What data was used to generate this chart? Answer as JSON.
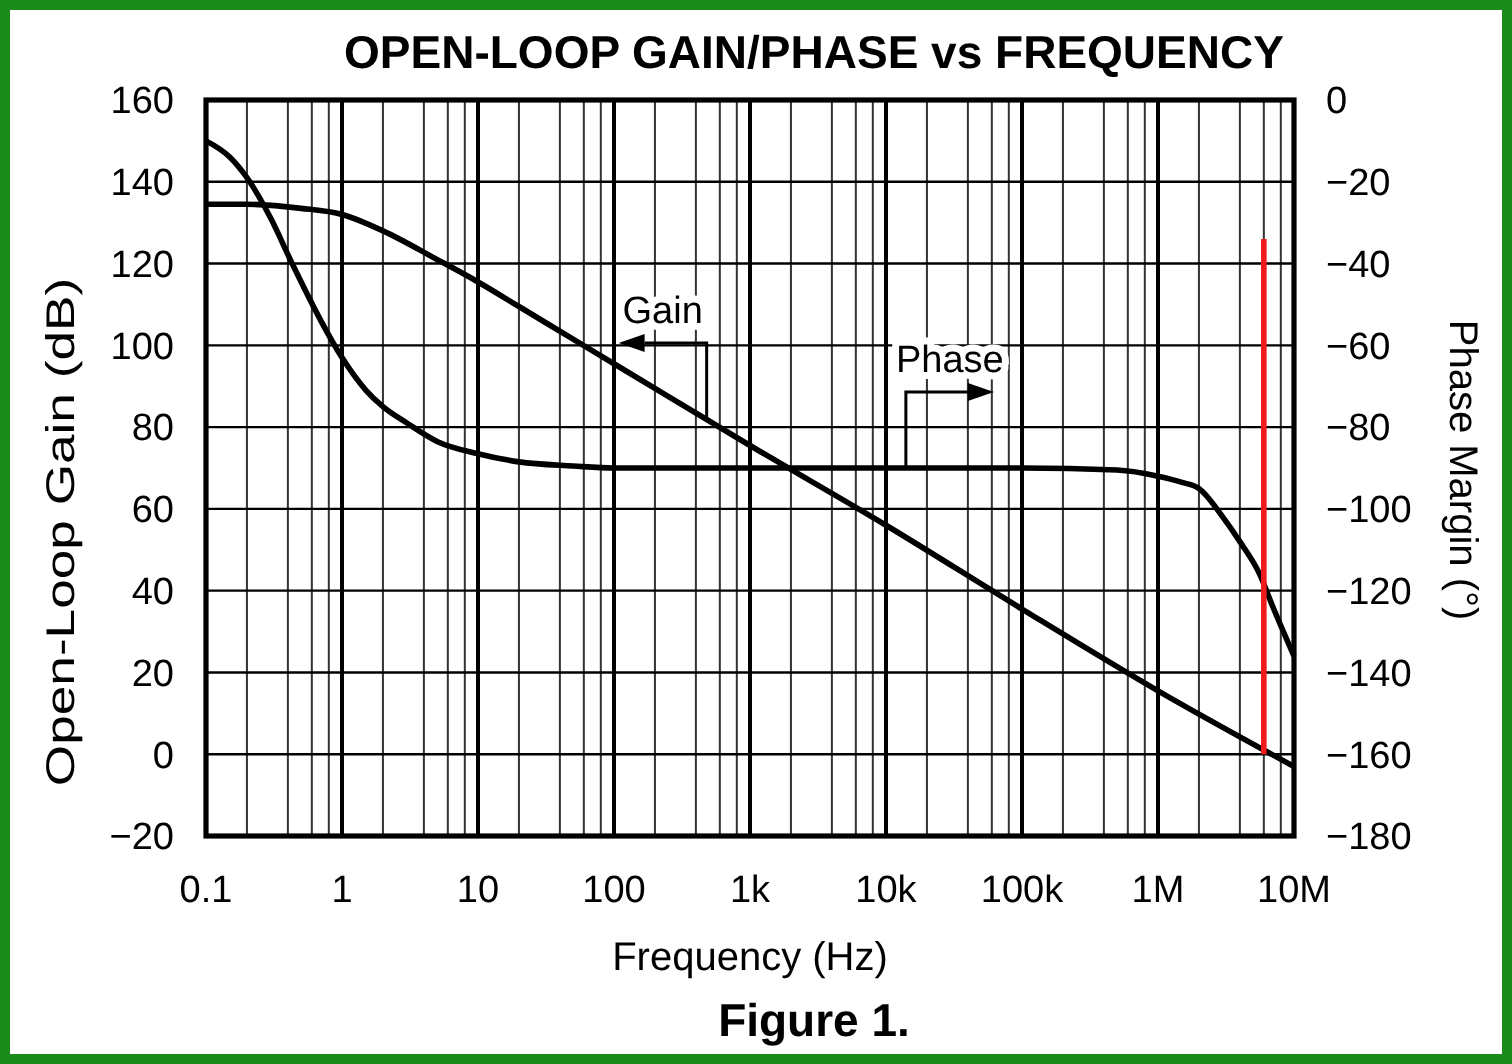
{
  "chart_data": {
    "type": "line",
    "title": "OPEN-LOOP GAIN/PHASE vs FREQUENCY",
    "xlabel": "Frequency (Hz)",
    "ylabel": "Open-Loop Gain (dB)",
    "y2label": "Phase Margin (°)",
    "log": "x",
    "grid": true,
    "xlim": [
      0.1,
      10000000
    ],
    "xticks": [
      0.1,
      {
        "value": 0.2,
        "label": null
      },
      {
        "value": 0.4,
        "label": null
      },
      {
        "value": 0.6,
        "label": null
      },
      {
        "value": 0.8,
        "label": null
      },
      1,
      {
        "value": 2,
        "label": null
      },
      {
        "value": 4,
        "label": null
      },
      {
        "value": 6,
        "label": null
      },
      {
        "value": 8,
        "label": null
      },
      10,
      {
        "value": 20,
        "label": null
      },
      {
        "value": 40,
        "label": null
      },
      {
        "value": 60,
        "label": null
      },
      {
        "value": 80,
        "label": null
      },
      100,
      {
        "value": 200,
        "label": null
      },
      {
        "value": 400,
        "label": null
      },
      {
        "value": 600,
        "label": null
      },
      {
        "value": 800,
        "label": null
      },
      {
        "value": 1000,
        "label": "1k"
      },
      {
        "value": 2000,
        "label": null
      },
      {
        "value": 4000,
        "label": null
      },
      {
        "value": 6000,
        "label": null
      },
      {
        "value": 8000,
        "label": null
      },
      {
        "value": 10000,
        "label": "10k"
      },
      {
        "value": 20000,
        "label": null
      },
      {
        "value": 40000,
        "label": null
      },
      {
        "value": 60000,
        "label": null
      },
      {
        "value": 80000,
        "label": null
      },
      {
        "value": 100000,
        "label": "100k"
      },
      {
        "value": 200000,
        "label": null
      },
      {
        "value": 400000,
        "label": null
      },
      {
        "value": 600000,
        "label": null
      },
      {
        "value": 800000,
        "label": null
      },
      {
        "value": 1000000,
        "label": "1M"
      },
      {
        "value": 2000000,
        "label": null
      },
      {
        "value": 4000000,
        "label": null
      },
      {
        "value": 6000000,
        "label": null
      },
      {
        "value": 8000000,
        "label": null
      },
      {
        "value": 10000000,
        "label": "10M"
      }
    ],
    "ylim": [
      -20,
      160
    ],
    "yticks": [
      {
        "value": -20,
        "label": "−20"
      },
      0,
      20,
      40,
      60,
      80,
      100,
      120,
      140,
      160
    ],
    "y2lim": [
      -180,
      0
    ],
    "y2ticks": [
      {
        "value": -180,
        "label": "−180"
      },
      {
        "value": -160,
        "label": "−160"
      },
      {
        "value": -140,
        "label": "−140"
      },
      {
        "value": -120,
        "label": "−120"
      },
      {
        "value": -100,
        "label": "−100"
      },
      {
        "value": -80,
        "label": "−80"
      },
      {
        "value": -60,
        "label": "−60"
      },
      {
        "value": -40,
        "label": "−40"
      },
      {
        "value": -20,
        "label": "−20"
      },
      0
    ],
    "series": [
      {
        "color": "#000000",
        "x": [
          0.1,
          0.2,
          0.5,
          1,
          2,
          5,
          10,
          20,
          50,
          100,
          1000,
          10000,
          100000,
          1000000,
          10000000
        ],
        "values": [
          134.5,
          134.5,
          133.5,
          132,
          128,
          121,
          115.5,
          109.5,
          101.5,
          95.5,
          75.5,
          56,
          35.5,
          15.5,
          -3
        ]
      },
      {
        "color": "#000000",
        "axis": "y2",
        "x": [
          0.1,
          0.15,
          0.2,
          0.3,
          0.43,
          0.7,
          1,
          1.5,
          2,
          3,
          5,
          10,
          20,
          50,
          100,
          1000,
          10000,
          100000,
          500000,
          1000000,
          1500000,
          2000000,
          3000000,
          4000000,
          5600000,
          7000000,
          10000000
        ],
        "values": [
          -10,
          -14,
          -19,
          -29,
          -40,
          -54,
          -63,
          -71,
          -75,
          -79,
          -83.5,
          -86.5,
          -88.5,
          -89.5,
          -90,
          -90,
          -90,
          -90,
          -90.5,
          -92,
          -93.5,
          -95,
          -102,
          -108,
          -116,
          -124,
          -136
        ]
      },
      {
        "color": "#ee1c1c",
        "x": [
          6000000,
          6000000
        ],
        "values": [
          0,
          126
        ]
      }
    ],
    "annotations": [
      {
        "text": "Gain",
        "x": 480,
        "y": 82
      },
      {
        "text": "Phase",
        "x": 14000,
        "y": 70
      },
      "Figure 1."
    ]
  }
}
